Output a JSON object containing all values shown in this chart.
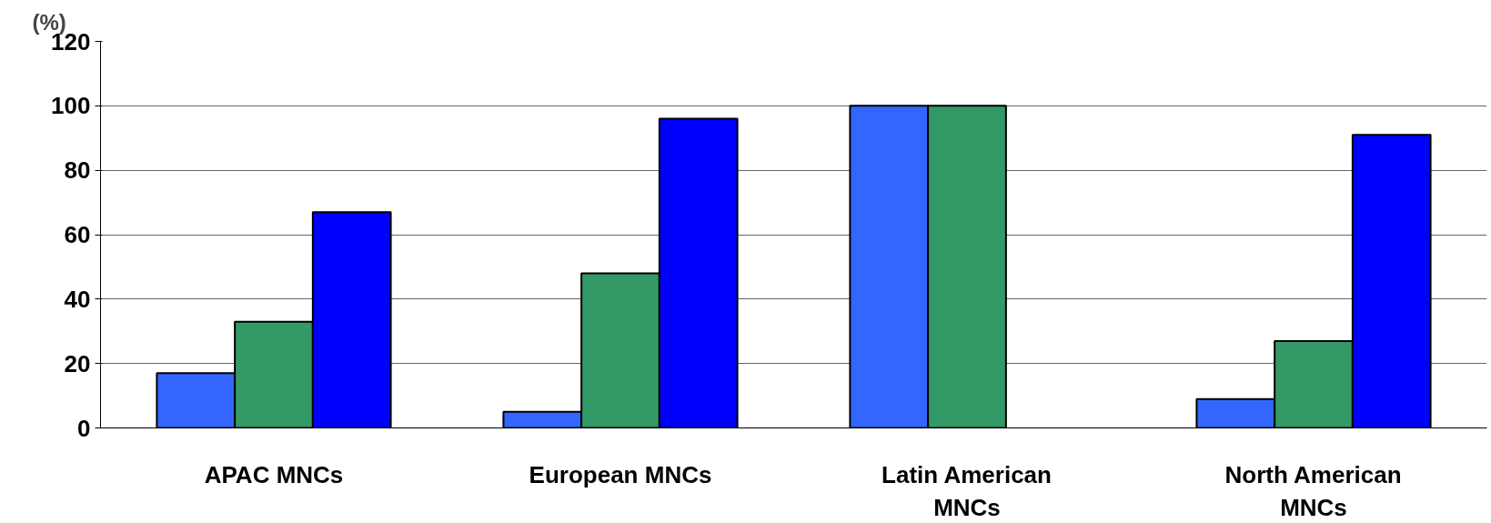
{
  "chart_data": {
    "type": "bar",
    "ylabel": "(%)",
    "categories": [
      "APAC MNCs",
      "European MNCs",
      "Latin American MNCs",
      "North American MNCs"
    ],
    "series": [
      {
        "color": "#3366ff",
        "values": [
          17,
          5,
          100,
          9
        ]
      },
      {
        "color": "#339966",
        "values": [
          33,
          48,
          100,
          27
        ]
      },
      {
        "color": "#0000ff",
        "values": [
          67,
          96,
          null,
          91
        ]
      }
    ],
    "ylim": [
      0,
      120
    ],
    "yticks": [
      0,
      20,
      40,
      60,
      80,
      100,
      120
    ],
    "grid": "y"
  }
}
